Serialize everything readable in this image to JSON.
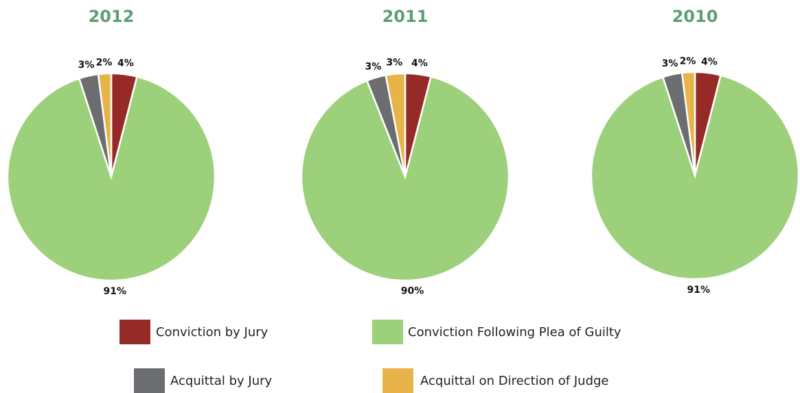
{
  "chart_data": [
    {
      "type": "pie",
      "title": "2012",
      "categories": [
        "Conviction by Jury",
        "Conviction Following Plea of Guilty",
        "Acquittal by Jury",
        "Acquittal on Direction of Judge"
      ],
      "values": [
        4,
        91,
        3,
        2
      ],
      "colors": [
        "#962a27",
        "#9dd07a",
        "#6c6d70",
        "#e8b44a"
      ]
    },
    {
      "type": "pie",
      "title": "2011",
      "categories": [
        "Conviction by Jury",
        "Conviction Following Plea of Guilty",
        "Acquittal by Jury",
        "Acquittal on Direction of Judge"
      ],
      "values": [
        4,
        90,
        3,
        3
      ],
      "colors": [
        "#962a27",
        "#9dd07a",
        "#6c6d70",
        "#e8b44a"
      ]
    },
    {
      "type": "pie",
      "title": "2010",
      "categories": [
        "Conviction by Jury",
        "Conviction Following Plea of Guilty",
        "Acquittal by Jury",
        "Acquittal on Direction of Judge"
      ],
      "values": [
        4,
        91,
        3,
        2
      ],
      "colors": [
        "#962a27",
        "#9dd07a",
        "#6c6d70",
        "#e8b44a"
      ]
    }
  ]
}
